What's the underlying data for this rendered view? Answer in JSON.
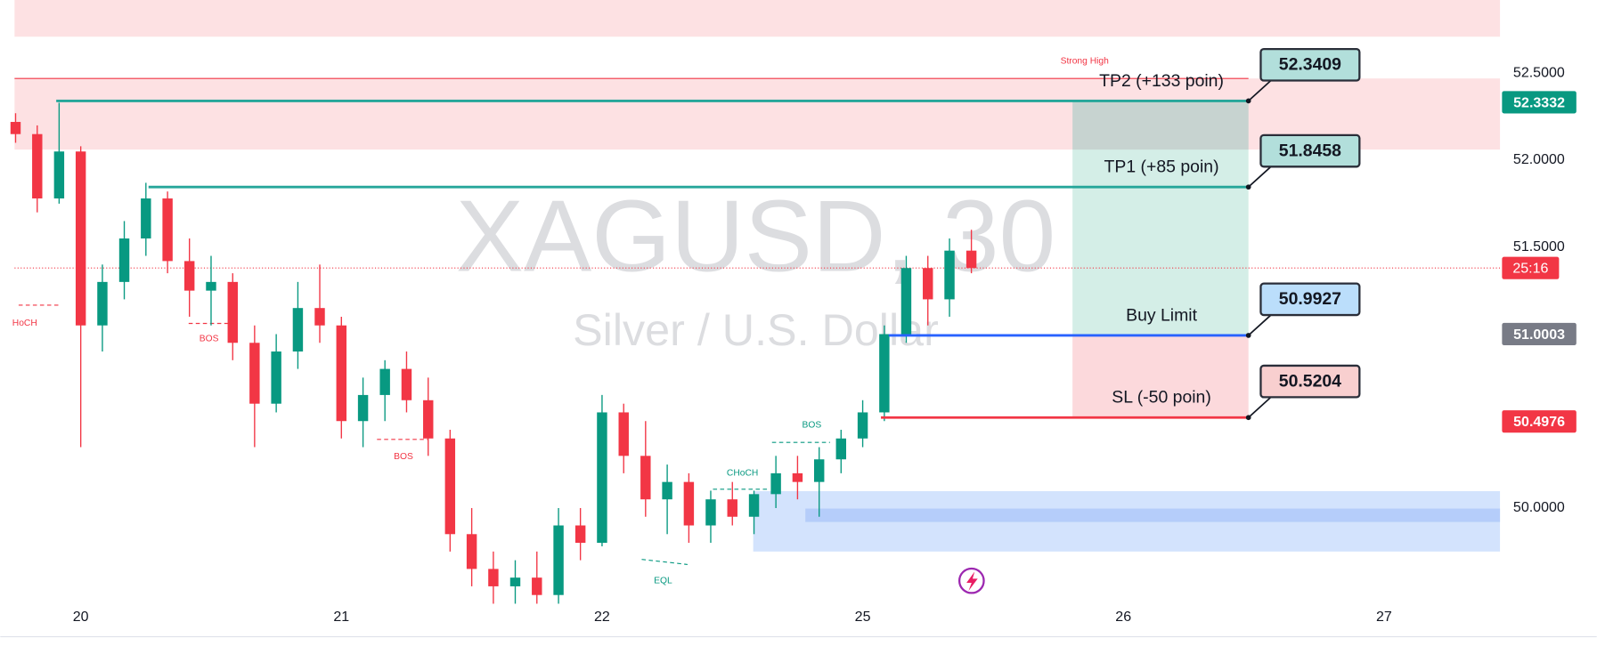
{
  "chart_data": {
    "type": "candlestick",
    "title": "XAGUSD, 30",
    "subtitle": "Silver / U.S. Dollar",
    "x": [
      -0.25,
      -0.167,
      -0.083,
      0,
      0.083,
      0.167,
      0.25,
      0.333,
      0.417,
      0.5,
      0.583,
      0.667,
      0.75,
      0.833,
      0.917,
      1,
      1.083,
      1.167,
      1.25,
      1.333,
      1.417,
      1.5,
      1.583,
      1.667,
      1.75,
      1.833,
      1.917,
      2,
      2.083,
      2.167,
      2.25,
      2.333,
      2.417,
      2.5,
      2.583,
      2.667,
      2.75,
      2.833,
      2.917,
      3,
      3.083,
      3.167,
      3.25,
      3.333,
      3.417
    ],
    "open": [
      52.22,
      52.15,
      51.78,
      52.05,
      51.05,
      51.3,
      51.55,
      51.78,
      51.42,
      51.25,
      51.3,
      50.95,
      50.6,
      50.9,
      51.15,
      51.05,
      50.5,
      50.65,
      50.8,
      50.62,
      50.4,
      49.85,
      49.65,
      49.55,
      49.6,
      49.5,
      49.9,
      49.8,
      50.55,
      50.3,
      50.05,
      50.15,
      49.9,
      50.05,
      49.95,
      50.08,
      50.2,
      50.15,
      50.28,
      50.4,
      50.55,
      51.0,
      51.38,
      51.2,
      51.48
    ],
    "high": [
      52.27,
      52.2,
      52.33,
      52.08,
      51.4,
      51.65,
      51.87,
      51.82,
      51.55,
      51.45,
      51.35,
      51.05,
      51.0,
      51.3,
      51.4,
      51.1,
      50.75,
      50.85,
      50.9,
      50.75,
      50.45,
      50.0,
      49.75,
      49.7,
      49.75,
      50.0,
      50.0,
      50.65,
      50.6,
      50.5,
      50.25,
      50.2,
      50.1,
      50.15,
      50.1,
      50.3,
      50.3,
      50.35,
      50.45,
      50.62,
      51.05,
      51.45,
      51.45,
      51.55,
      51.6
    ],
    "low": [
      52.1,
      51.7,
      51.75,
      50.35,
      50.9,
      51.2,
      51.45,
      51.35,
      51.1,
      51.05,
      50.85,
      50.35,
      50.55,
      50.8,
      50.95,
      50.4,
      50.35,
      50.5,
      50.55,
      50.3,
      49.75,
      49.55,
      49.45,
      49.45,
      49.45,
      49.45,
      49.7,
      49.78,
      50.2,
      49.95,
      49.85,
      49.8,
      49.8,
      49.9,
      49.85,
      50.0,
      50.05,
      49.95,
      50.2,
      50.35,
      50.5,
      50.95,
      51.05,
      51.1,
      51.35
    ],
    "close": [
      52.15,
      51.78,
      52.05,
      51.05,
      51.3,
      51.55,
      51.78,
      51.42,
      51.25,
      51.3,
      50.95,
      50.6,
      50.9,
      51.15,
      51.05,
      50.5,
      50.65,
      50.8,
      50.62,
      50.4,
      49.85,
      49.65,
      49.55,
      49.6,
      49.5,
      49.9,
      49.8,
      50.55,
      50.3,
      50.05,
      50.15,
      49.9,
      50.05,
      49.95,
      50.08,
      50.2,
      50.15,
      50.28,
      50.4,
      50.55,
      51.0,
      51.38,
      51.2,
      51.48,
      51.38
    ],
    "up_color": "#089981",
    "down_color": "#f23645",
    "xlim": [
      -0.254,
      5.445
    ],
    "xticks": [
      {
        "value": 0,
        "label": "20"
      },
      {
        "value": 1,
        "label": "21"
      },
      {
        "value": 2,
        "label": "22"
      },
      {
        "value": 3,
        "label": "25"
      },
      {
        "value": 4,
        "label": "26"
      },
      {
        "value": 5,
        "label": "27"
      }
    ],
    "ylim": [
      49.424,
      52.921
    ],
    "yticks": [
      {
        "value": 50,
        "label": "50.0000"
      },
      {
        "value": 51.5,
        "label": "51.5000"
      },
      {
        "value": 52,
        "label": "52.0000"
      },
      {
        "value": 52.5,
        "label": "52.5000"
      }
    ],
    "zones": [
      {
        "x0": -0.254,
        "top": 52.921,
        "bottom": 52.71,
        "color": "#fde1e3"
      },
      {
        "x0": -0.254,
        "top": 52.47,
        "bottom": 52.061,
        "color": "#fde1e3"
      },
      {
        "x0": 2.58,
        "top": 50.097,
        "bottom": 49.75,
        "color": "#d3e3fd"
      },
      {
        "x0": 2.78,
        "top": 49.997,
        "bottom": 49.92,
        "color": "#b5cdfa"
      }
    ],
    "strong_high": {
      "label": "Strong High",
      "value": 52.47,
      "color": "#f23645"
    },
    "position": {
      "start": 3.805,
      "end": 4.48,
      "profit_color": "#cdebe3",
      "loss_color": "#fcd9dc"
    },
    "levels": [
      {
        "label": "TP2 (+133 poin)",
        "value": 52.3409,
        "start": -0.094,
        "color": "#26a69a",
        "box_color": "#b2dfdb"
      },
      {
        "label": "TP1 (+85 poin)",
        "value": 51.8458,
        "start": 0.26,
        "color": "#26a69a",
        "box_color": "#b2dfdb"
      },
      {
        "label": "Buy Limit",
        "value": 50.9927,
        "start": 3.1,
        "color": "#2962ff",
        "box_color": "#bbdefb"
      },
      {
        "label": "SL (-50 poin)",
        "value": 50.5204,
        "start": 3.07,
        "color": "#f23645",
        "box_color": "#f8cfcf"
      }
    ],
    "price_labels": [
      {
        "value": 52.3332,
        "color": "#089981"
      },
      {
        "value": 51.0003,
        "color": "#787b86"
      },
      {
        "value": 50.4976,
        "color": "#f23645"
      }
    ],
    "countdown": "25:16",
    "countdown_color": "#f23645",
    "annotations": [
      {
        "text": "HoCH",
        "color": "#f23645"
      },
      {
        "text": "BOS",
        "color": "#f23645"
      },
      {
        "text": "BOS",
        "color": "#f23645"
      },
      {
        "text": "BOS",
        "color": "#089981"
      },
      {
        "text": "CHoCH",
        "color": "#089981"
      },
      {
        "text": "EQL",
        "color": "#089981"
      }
    ]
  }
}
